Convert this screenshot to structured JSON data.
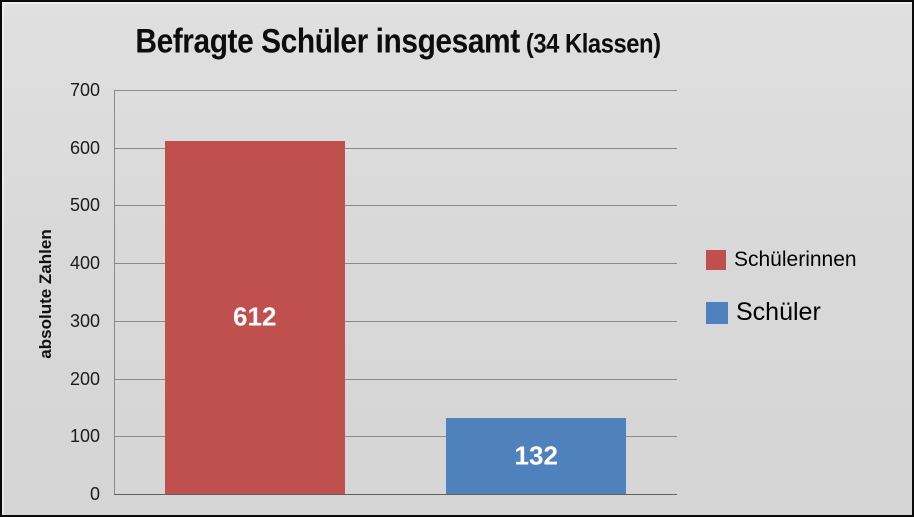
{
  "chart_data": {
    "type": "bar",
    "title": "Befragte Schüler insgesamt",
    "subtitle": "(34 Klassen)",
    "ylabel": "absolute Zahlen",
    "xlabel": "",
    "categories": [
      "Schülerinnen",
      "Schüler"
    ],
    "series": [
      {
        "name": "Schülerinnen",
        "value": 612,
        "color": "#C0504D"
      },
      {
        "name": "Schüler",
        "value": 132,
        "color": "#4F81BD"
      }
    ],
    "ylim": [
      0,
      700
    ],
    "ytick_step": 100,
    "grid": true,
    "legend_position": "right",
    "bar_label_color": "#FFFFFF",
    "background_color": "#D9D9D9",
    "gridline_color": "#8A8A8A"
  }
}
